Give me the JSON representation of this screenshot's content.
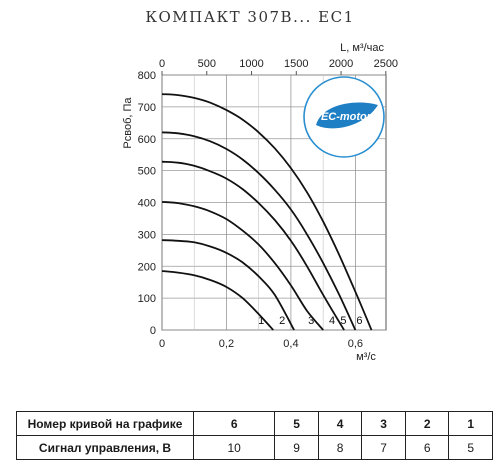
{
  "chart_data": {
    "type": "line",
    "title": "КОМПАКТ 307В... EC1",
    "ylabel": "Pсвоб, Па",
    "xlabel": "м³/с",
    "top_axis_label": "L, м³/час",
    "xlim": [
      0,
      0.695
    ],
    "ylim": [
      0,
      800
    ],
    "x_ticks": [
      "0",
      "0,2",
      "0,4",
      "0,6"
    ],
    "y_ticks": [
      "0",
      "100",
      "200",
      "300",
      "400",
      "500",
      "600",
      "700",
      "800"
    ],
    "top_ticks": [
      "0",
      "500",
      "1000",
      "1500",
      "2000",
      "2500"
    ],
    "grid": true,
    "badge": "EC-motor",
    "series": [
      {
        "name": "1",
        "points": [
          [
            0,
            185
          ],
          [
            0.05,
            180
          ],
          [
            0.1,
            172
          ],
          [
            0.15,
            157
          ],
          [
            0.2,
            135
          ],
          [
            0.25,
            100
          ],
          [
            0.3,
            50
          ],
          [
            0.345,
            0
          ]
        ]
      },
      {
        "name": "2",
        "points": [
          [
            0,
            282
          ],
          [
            0.05,
            280
          ],
          [
            0.1,
            275
          ],
          [
            0.15,
            262
          ],
          [
            0.2,
            242
          ],
          [
            0.25,
            212
          ],
          [
            0.3,
            168
          ],
          [
            0.35,
            110
          ],
          [
            0.41,
            0
          ]
        ]
      },
      {
        "name": "3",
        "points": [
          [
            0,
            402
          ],
          [
            0.05,
            398
          ],
          [
            0.1,
            388
          ],
          [
            0.15,
            372
          ],
          [
            0.2,
            348
          ],
          [
            0.25,
            312
          ],
          [
            0.3,
            268
          ],
          [
            0.35,
            210
          ],
          [
            0.4,
            140
          ],
          [
            0.45,
            60
          ],
          [
            0.5,
            0
          ]
        ]
      },
      {
        "name": "4",
        "points": [
          [
            0,
            528
          ],
          [
            0.05,
            525
          ],
          [
            0.1,
            515
          ],
          [
            0.15,
            498
          ],
          [
            0.2,
            475
          ],
          [
            0.25,
            442
          ],
          [
            0.3,
            398
          ],
          [
            0.35,
            345
          ],
          [
            0.4,
            280
          ],
          [
            0.45,
            200
          ],
          [
            0.5,
            110
          ],
          [
            0.565,
            0
          ]
        ]
      },
      {
        "name": "5",
        "points": [
          [
            0,
            620
          ],
          [
            0.05,
            617
          ],
          [
            0.1,
            608
          ],
          [
            0.15,
            592
          ],
          [
            0.2,
            568
          ],
          [
            0.25,
            535
          ],
          [
            0.3,
            492
          ],
          [
            0.35,
            440
          ],
          [
            0.4,
            378
          ],
          [
            0.45,
            300
          ],
          [
            0.5,
            210
          ],
          [
            0.55,
            110
          ],
          [
            0.6,
            0
          ]
        ]
      },
      {
        "name": "6",
        "points": [
          [
            0,
            740
          ],
          [
            0.05,
            737
          ],
          [
            0.1,
            728
          ],
          [
            0.15,
            713
          ],
          [
            0.2,
            690
          ],
          [
            0.25,
            660
          ],
          [
            0.3,
            620
          ],
          [
            0.35,
            570
          ],
          [
            0.4,
            508
          ],
          [
            0.45,
            432
          ],
          [
            0.5,
            340
          ],
          [
            0.55,
            235
          ],
          [
            0.6,
            120
          ],
          [
            0.65,
            0
          ]
        ]
      }
    ]
  },
  "legend_table": {
    "row1_label": "Номер кривой на графике",
    "row2_label": "Сигнал управления, В",
    "curves": [
      "6",
      "5",
      "4",
      "3",
      "2",
      "1"
    ],
    "signals": [
      "10",
      "9",
      "8",
      "7",
      "6",
      "5"
    ]
  }
}
